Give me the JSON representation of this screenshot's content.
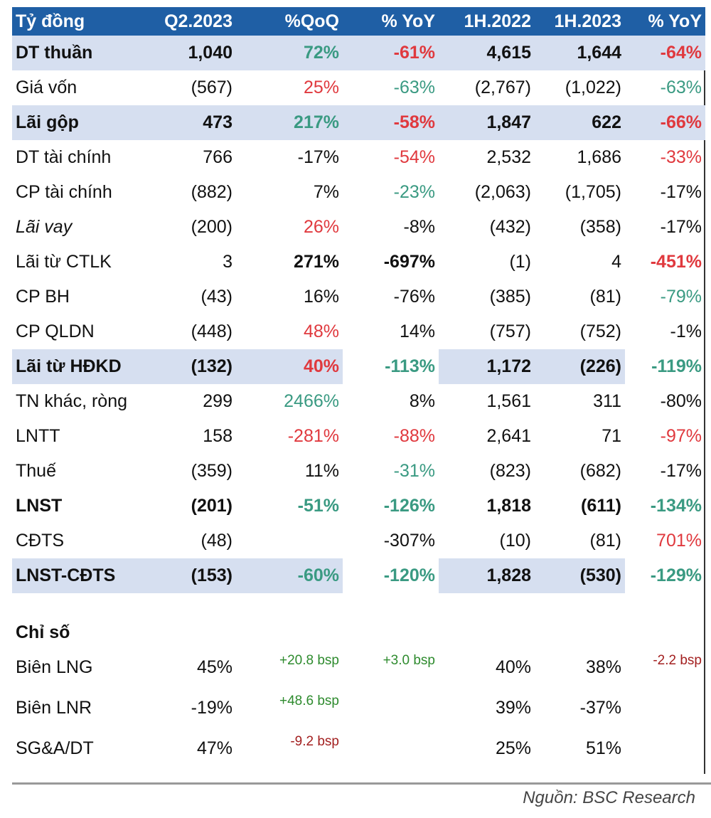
{
  "header": [
    "Tỷ đồng",
    "Q2.2023",
    "%QoQ",
    "% YoY",
    "1H.2022",
    "1H.2023",
    "% YoY"
  ],
  "rows": [
    {
      "cells": [
        "DT thuần",
        "1,040",
        "72%",
        "-61%",
        "4,615",
        "1,644",
        "-64%"
      ]
    },
    {
      "cells": [
        "Giá vốn",
        "(567)",
        "25%",
        "-63%",
        "(2,767)",
        "(1,022)",
        "-63%"
      ]
    },
    {
      "cells": [
        "Lãi gộp",
        "473",
        "217%",
        "-58%",
        "1,847",
        "622",
        "-66%"
      ]
    },
    {
      "cells": [
        "DT tài chính",
        "766",
        "-17%",
        "-54%",
        "2,532",
        "1,686",
        "-33%"
      ]
    },
    {
      "cells": [
        "CP tài chính",
        "(882)",
        "7%",
        "-23%",
        "(2,063)",
        "(1,705)",
        "-17%"
      ]
    },
    {
      "cells": [
        "Lãi vay",
        "(200)",
        "26%",
        "-8%",
        "(432)",
        "(358)",
        "-17%"
      ]
    },
    {
      "cells": [
        "Lãi từ CTLK",
        "3",
        "271%",
        "-697%",
        "(1)",
        "4",
        "-451%"
      ]
    },
    {
      "cells": [
        "CP BH",
        "(43)",
        "16%",
        "-76%",
        "(385)",
        "(81)",
        "-79%"
      ]
    },
    {
      "cells": [
        "CP QLDN",
        "(448)",
        "48%",
        "14%",
        "(757)",
        "(752)",
        "-1%"
      ]
    },
    {
      "cells": [
        "Lãi từ HĐKD",
        "(132)",
        "40%",
        "-113%",
        "1,172",
        "(226)",
        "-119%"
      ]
    },
    {
      "cells": [
        "TN khác, ròng",
        "299",
        "2466%",
        "8%",
        "1,561",
        "311",
        "-80%"
      ]
    },
    {
      "cells": [
        "LNTT",
        "158",
        "-281%",
        "-88%",
        "2,641",
        "71",
        "-97%"
      ]
    },
    {
      "cells": [
        "Thuế",
        "(359)",
        "11%",
        "-31%",
        "(823)",
        "(682)",
        "-17%"
      ]
    },
    {
      "cells": [
        "LNST",
        "(201)",
        "-51%",
        "-126%",
        "1,818",
        "(611)",
        "-134%"
      ]
    },
    {
      "cells": [
        "CĐTS",
        "(48)",
        "",
        "-307%",
        "(10)",
        "(81)",
        "701%"
      ]
    },
    {
      "cells": [
        "LNST-CĐTS",
        "(153)",
        "-60%",
        "-120%",
        "1,828",
        "(530)",
        "-129%"
      ]
    }
  ],
  "section_title": "Chỉ số",
  "ratios": [
    {
      "cells": [
        "Biên LNG",
        "45%",
        "+20.8 bsp",
        "+3.0 bsp",
        "40%",
        "38%",
        "-2.2 bsp"
      ]
    },
    {
      "cells": [
        "Biên LNR",
        "-19%",
        "+48.6 bsp",
        "",
        "39%",
        "-37%",
        ""
      ]
    },
    {
      "cells": [
        "SG&A/DT",
        "47%",
        "-9.2 bsp",
        "",
        "25%",
        "51%",
        ""
      ]
    }
  ],
  "source": "Nguồn: BSC Research",
  "colors": {
    "header_bg": "#1f5fa5",
    "highlight_bg": "#d6dff0",
    "positive": "#3a9a82",
    "negative": "#e0393e"
  }
}
